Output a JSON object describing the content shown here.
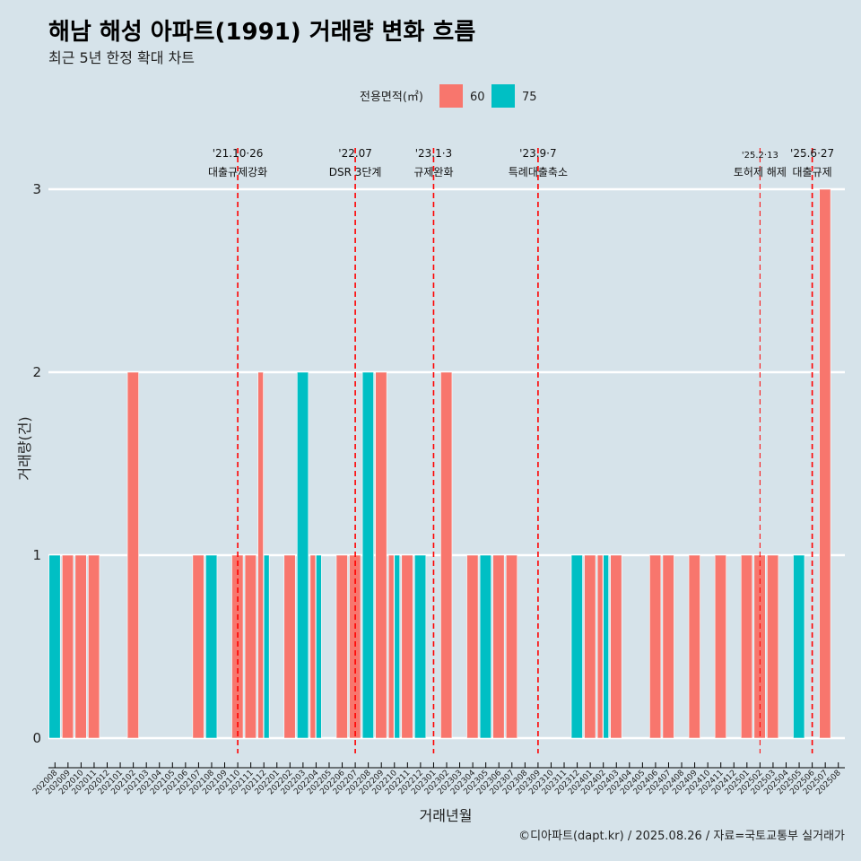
{
  "title": "해남 해성 아파트(1991) 거래량 변화 흐름",
  "subtitle": "최근 5년 한정 확대 차트",
  "caption": "©디아파트(dapt.kr) / 2025.08.26 / 자료=국토교통부 실거래가",
  "colors": {
    "s60": "#f8766d",
    "s75": "#00bfc4",
    "background": "#d6e3ea",
    "grid": "#ffffff",
    "event_line": "#ff0000"
  },
  "chart_data": {
    "type": "bar",
    "xlabel": "거래년월",
    "ylabel": "거래량(건)",
    "ylim": [
      0,
      3
    ],
    "yticks": [
      0,
      1,
      2,
      3
    ],
    "legend": {
      "title": "전용면적(㎡)",
      "position": "top"
    },
    "categories": [
      "202008",
      "202009",
      "202010",
      "202011",
      "202012",
      "202101",
      "202102",
      "202103",
      "202104",
      "202105",
      "202106",
      "202107",
      "202108",
      "202109",
      "202110",
      "202111",
      "202112",
      "202201",
      "202202",
      "202203",
      "202204",
      "202205",
      "202206",
      "202207",
      "202208",
      "202209",
      "202210",
      "202211",
      "202212",
      "202301",
      "202302",
      "202303",
      "202304",
      "202305",
      "202306",
      "202307",
      "202308",
      "202309",
      "202310",
      "202311",
      "202312",
      "202401",
      "202402",
      "202403",
      "202404",
      "202405",
      "202406",
      "202407",
      "202408",
      "202409",
      "202410",
      "202411",
      "202412",
      "202501",
      "202502",
      "202503",
      "202504",
      "202505",
      "202506",
      "202507",
      "202508"
    ],
    "series": [
      {
        "name": "60",
        "values": [
          0,
          1,
          1,
          1,
          0,
          0,
          2,
          0,
          0,
          0,
          0,
          1,
          0,
          0,
          1,
          1,
          2,
          0,
          1,
          0,
          1,
          0,
          1,
          1,
          0,
          2,
          1,
          1,
          0,
          0,
          2,
          0,
          1,
          0,
          1,
          1,
          0,
          0,
          0,
          0,
          0,
          1,
          1,
          1,
          0,
          0,
          1,
          1,
          0,
          1,
          0,
          1,
          0,
          1,
          1,
          1,
          0,
          0,
          0,
          3,
          0
        ]
      },
      {
        "name": "75",
        "values": [
          1,
          0,
          0,
          0,
          0,
          0,
          0,
          0,
          0,
          0,
          0,
          0,
          1,
          0,
          0,
          0,
          1,
          0,
          0,
          2,
          1,
          0,
          0,
          0,
          2,
          0,
          1,
          0,
          1,
          0,
          0,
          0,
          0,
          1,
          0,
          0,
          0,
          0,
          0,
          0,
          1,
          0,
          1,
          0,
          0,
          0,
          0,
          0,
          0,
          0,
          0,
          0,
          0,
          0,
          0,
          0,
          0,
          1,
          0,
          0,
          0
        ]
      }
    ],
    "annotations": [
      {
        "date": "'21.10·26",
        "label": "대출규제강화",
        "at": "202110"
      },
      {
        "date": "'22.07",
        "label": "DSR 3단계",
        "at": "202207"
      },
      {
        "date": "'23.1·3",
        "label": "규제완화",
        "at": "202301"
      },
      {
        "date": "'23.9·7",
        "label": "특례대출축소",
        "at": "202309"
      },
      {
        "date": "'25.2·13",
        "label": "토허제 해제",
        "at": "202502"
      },
      {
        "date": "'25.6·27",
        "label": "대출규제",
        "at": "202506"
      }
    ]
  }
}
